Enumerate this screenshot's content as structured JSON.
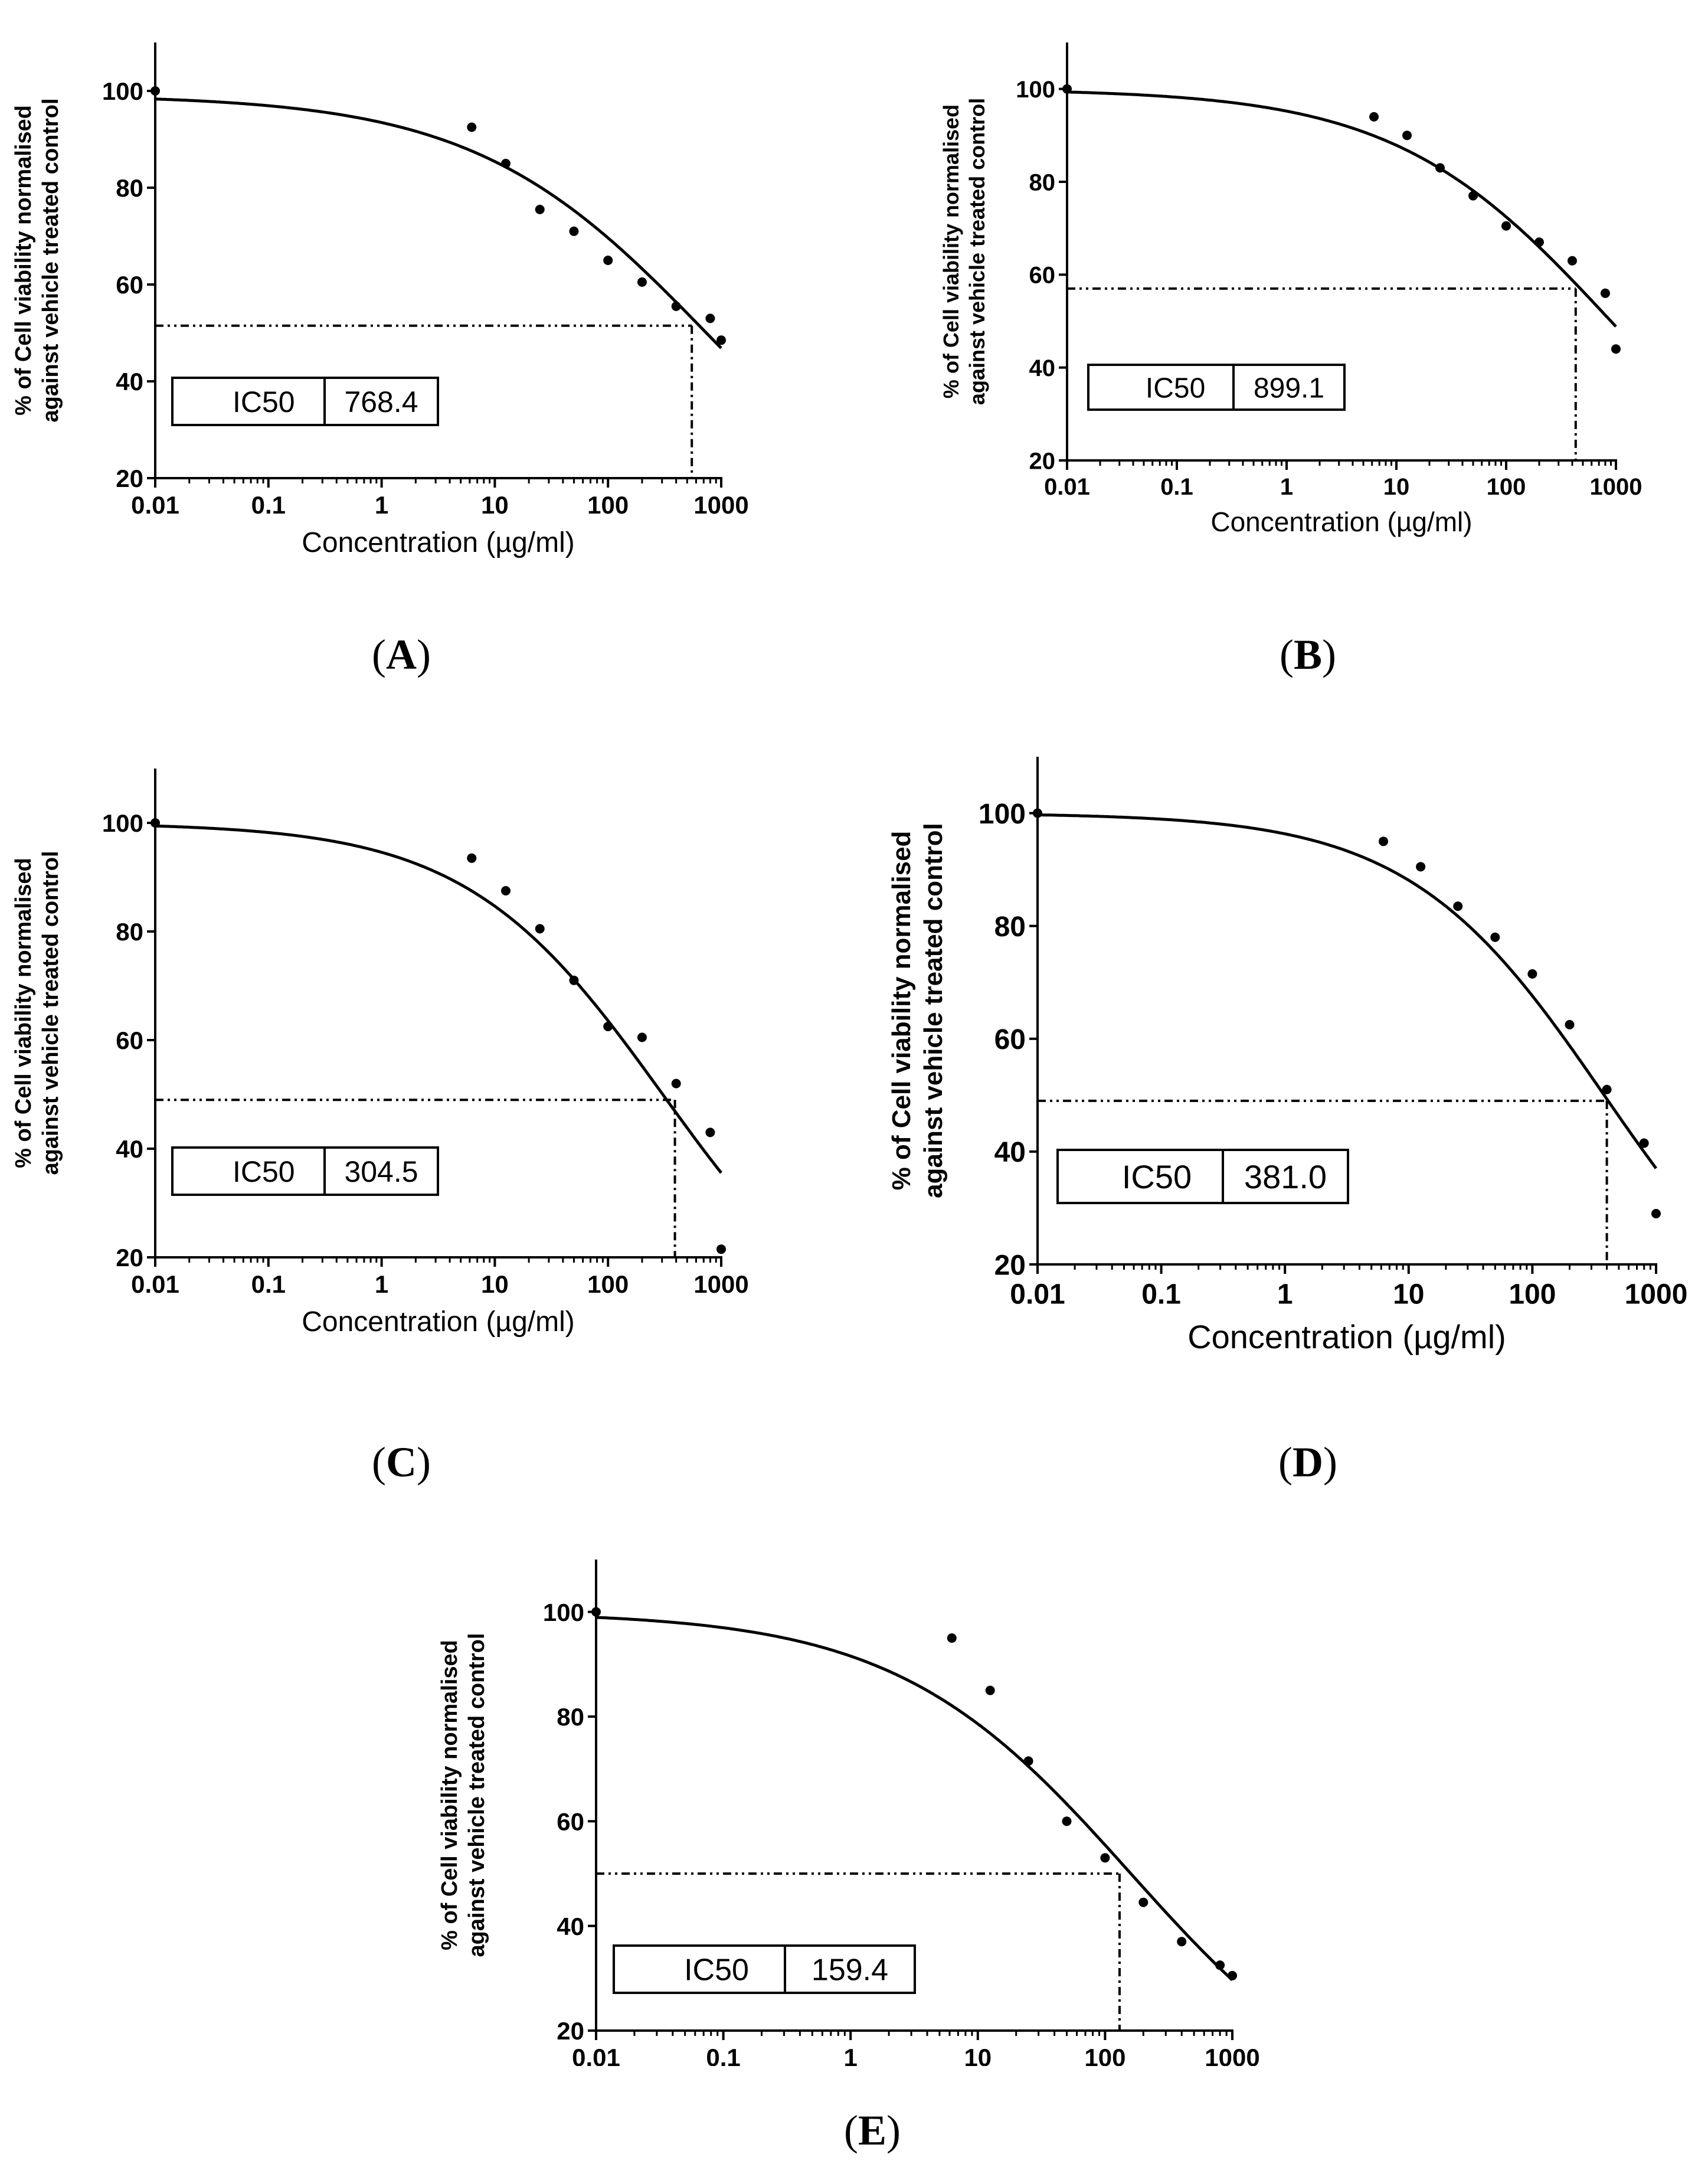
{
  "chart_data": [
    {
      "type": "scatter",
      "panel": "A",
      "xlabel": "Concentration (µg/ml)",
      "ylabel": [
        "% of Cell viability normalised",
        "against vehicle treated control"
      ],
      "xscale": "log",
      "xlim": [
        0.01,
        1000
      ],
      "ylim": [
        20,
        110
      ],
      "xticks": [
        "0.01",
        "0.1",
        "1",
        "10",
        "100",
        "1000"
      ],
      "xtick_values": [
        0.01,
        0.1,
        1,
        10,
        100,
        1000
      ],
      "yticks": [
        20,
        40,
        60,
        80,
        100
      ],
      "points": {
        "x": [
          0.01,
          6.25,
          12.5,
          25,
          50,
          100,
          200,
          400,
          800,
          1000
        ],
        "y": [
          100,
          92.5,
          85,
          75.5,
          71,
          65,
          60.5,
          55.5,
          53,
          48.5
        ]
      },
      "fit": {
        "top": 99.2,
        "bottom": 0,
        "ic50": 768.4,
        "hill": 0.42
      },
      "ic50_guide": {
        "x": 550,
        "y": 51.5
      },
      "ic50_label": "IC50",
      "ic50_value": "768.4",
      "caption_letter": "A"
    },
    {
      "type": "scatter",
      "panel": "B",
      "xlabel": "Concentration (µg/ml)",
      "ylabel": [
        "% of Cell viability normalised",
        "against vehicle treated control"
      ],
      "xscale": "log",
      "xlim": [
        0.01,
        1000
      ],
      "ylim": [
        20,
        110
      ],
      "xticks": [
        "0.01",
        "0.1",
        "1",
        "10",
        "100",
        "1000"
      ],
      "xtick_values": [
        0.01,
        0.1,
        1,
        10,
        100,
        1000
      ],
      "yticks": [
        20,
        40,
        60,
        80,
        100
      ],
      "points": {
        "x": [
          0.01,
          6.25,
          12.5,
          25,
          50,
          100,
          200,
          400,
          800,
          1000
        ],
        "y": [
          100,
          94,
          90,
          83,
          77,
          70.5,
          67,
          63,
          56,
          44
        ]
      },
      "fit": {
        "top": 100,
        "bottom": 0,
        "ic50": 899.1,
        "hill": 0.44
      },
      "ic50_guide": {
        "x": 430,
        "y": 57
      },
      "ic50_label": "IC50",
      "ic50_value": "899.1",
      "caption_letter": "B"
    },
    {
      "type": "scatter",
      "panel": "C",
      "xlabel": "Concentration (µg/ml)",
      "ylabel": [
        "% of Cell viability normalised",
        "against vehicle treated control"
      ],
      "xscale": "log",
      "xlim": [
        0.01,
        1000
      ],
      "ylim": [
        20,
        110
      ],
      "xticks": [
        "0.01",
        "0.1",
        "1",
        "10",
        "100",
        "1000"
      ],
      "xtick_values": [
        0.01,
        0.1,
        1,
        10,
        100,
        1000
      ],
      "yticks": [
        20,
        40,
        60,
        80,
        100
      ],
      "points": {
        "x": [
          0.01,
          6.25,
          12.5,
          25,
          50,
          100,
          200,
          400,
          800,
          1000
        ],
        "y": [
          100,
          93.5,
          87.5,
          80.5,
          71,
          62.5,
          60.5,
          52,
          43,
          21.5
        ]
      },
      "fit": {
        "top": 100,
        "bottom": 0,
        "ic50": 304.5,
        "hill": 0.5
      },
      "ic50_guide": {
        "x": 390,
        "y": 49
      },
      "ic50_label": "IC50",
      "ic50_value": "304.5",
      "caption_letter": "C"
    },
    {
      "type": "scatter",
      "panel": "D",
      "xlabel": "Concentration (µg/ml)",
      "ylabel": [
        "% of Cell viability normalised",
        "against vehicle treated control"
      ],
      "xscale": "log",
      "xlim": [
        0.01,
        1000
      ],
      "ylim": [
        20,
        110
      ],
      "xticks": [
        "0.01",
        "0.1",
        "1",
        "10",
        "100",
        "1000"
      ],
      "xtick_values": [
        0.01,
        0.1,
        1,
        10,
        100,
        1000
      ],
      "yticks": [
        20,
        40,
        60,
        80,
        100
      ],
      "points": {
        "x": [
          0.01,
          6.25,
          12.5,
          25,
          50,
          100,
          200,
          400,
          800,
          1000
        ],
        "y": [
          100,
          95,
          90.5,
          83.5,
          78,
          71.5,
          62.5,
          51,
          41.5,
          29
        ]
      },
      "fit": {
        "top": 100,
        "bottom": 0,
        "ic50": 381.0,
        "hill": 0.55
      },
      "ic50_guide": {
        "x": 400,
        "y": 49
      },
      "ic50_label": "IC50",
      "ic50_value": "381.0",
      "caption_letter": "D"
    },
    {
      "type": "scatter",
      "panel": "E",
      "xlabel": "Concentration (µg/ml)",
      "ylabel": [
        "% of Cell viability normalised",
        "against vehicle treated control"
      ],
      "xscale": "log",
      "xlim": [
        0.01,
        1000
      ],
      "ylim": [
        20,
        110
      ],
      "xticks": [
        "0.01",
        "0.1",
        "1",
        "10",
        "100",
        "1000"
      ],
      "xtick_values": [
        0.01,
        0.1,
        1,
        10,
        100,
        1000
      ],
      "yticks": [
        20,
        40,
        60,
        80,
        100
      ],
      "points": {
        "x": [
          0.01,
          6.25,
          12.5,
          25,
          50,
          100,
          200,
          400,
          800,
          1000
        ],
        "y": [
          100,
          95,
          85,
          71.5,
          60,
          53,
          44.5,
          37,
          32.5,
          30.5
        ]
      },
      "fit": {
        "top": 100,
        "bottom": 0,
        "ic50": 159.4,
        "hill": 0.47
      },
      "ic50_guide": {
        "x": 130,
        "y": 50
      },
      "ic50_label": "IC50",
      "ic50_value": "159.4",
      "caption_letter": "E"
    }
  ]
}
